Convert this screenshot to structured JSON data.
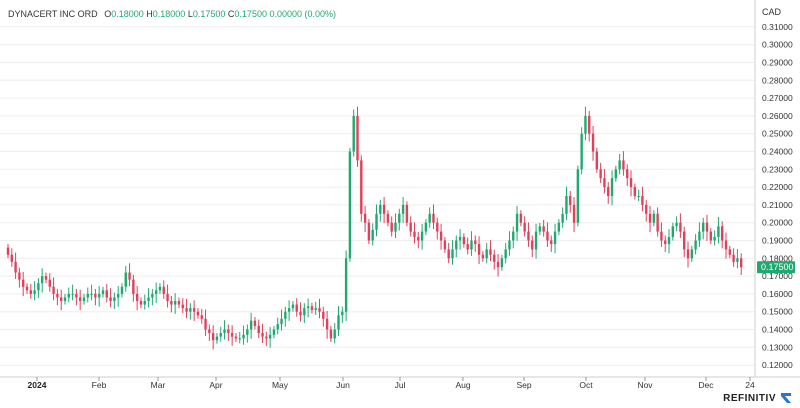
{
  "header": {
    "instrument": "DYNACERT INC ORD",
    "open_label": "O",
    "open": "0.18000",
    "high_label": "H",
    "high": "0.18000",
    "low_label": "L",
    "low": "0.17500",
    "close_label": "C",
    "close": "0.17500",
    "change": "0.00000 (0.00%)"
  },
  "brand": {
    "name": "REFINITIV"
  },
  "colors": {
    "up": "#1fa971",
    "down": "#e0405c",
    "last_price_badge": "#1fa971",
    "grid": "#eeeeee"
  },
  "chart_data": {
    "type": "candlestick",
    "currency": "CAD",
    "ylim": [
      0.115,
      0.315
    ],
    "y_ticks": [
      "0.12000",
      "0.13000",
      "0.14000",
      "0.15000",
      "0.16000",
      "0.17000",
      "0.18000",
      "0.19000",
      "0.20000",
      "0.21000",
      "0.22000",
      "0.23000",
      "0.24000",
      "0.25000",
      "0.26000",
      "0.27000",
      "0.28000",
      "0.29000",
      "0.30000",
      "0.31000"
    ],
    "x_ticks": [
      "2024",
      "Feb",
      "Mar",
      "Apr",
      "May",
      "Jun",
      "Jul",
      "Aug",
      "Sep",
      "Oct",
      "Nov",
      "Dec",
      "24"
    ],
    "last_price": "0.17500",
    "grid": true,
    "close_series": [
      0.182,
      0.178,
      0.172,
      0.168,
      0.164,
      0.162,
      0.16,
      0.162,
      0.166,
      0.17,
      0.168,
      0.164,
      0.16,
      0.158,
      0.156,
      0.158,
      0.16,
      0.16,
      0.158,
      0.156,
      0.158,
      0.16,
      0.16,
      0.158,
      0.16,
      0.162,
      0.158,
      0.156,
      0.158,
      0.16,
      0.164,
      0.172,
      0.168,
      0.16,
      0.156,
      0.154,
      0.156,
      0.158,
      0.16,
      0.162,
      0.164,
      0.16,
      0.156,
      0.154,
      0.156,
      0.154,
      0.152,
      0.15,
      0.152,
      0.15,
      0.148,
      0.146,
      0.14,
      0.138,
      0.134,
      0.136,
      0.138,
      0.14,
      0.138,
      0.136,
      0.135,
      0.135,
      0.137,
      0.14,
      0.145,
      0.142,
      0.138,
      0.136,
      0.135,
      0.137,
      0.14,
      0.143,
      0.146,
      0.15,
      0.152,
      0.154,
      0.15,
      0.148,
      0.152,
      0.153,
      0.151,
      0.152,
      0.15,
      0.146,
      0.14,
      0.135,
      0.14,
      0.148,
      0.15,
      0.18,
      0.24,
      0.26,
      0.235,
      0.205,
      0.2,
      0.19,
      0.196,
      0.205,
      0.21,
      0.205,
      0.2,
      0.195,
      0.2,
      0.205,
      0.21,
      0.2,
      0.195,
      0.192,
      0.19,
      0.195,
      0.2,
      0.205,
      0.2,
      0.195,
      0.19,
      0.185,
      0.18,
      0.185,
      0.19,
      0.192,
      0.188,
      0.185,
      0.19,
      0.188,
      0.182,
      0.18,
      0.185,
      0.182,
      0.178,
      0.175,
      0.18,
      0.185,
      0.19,
      0.195,
      0.205,
      0.2,
      0.195,
      0.19,
      0.185,
      0.195,
      0.198,
      0.195,
      0.19,
      0.188,
      0.195,
      0.2,
      0.205,
      0.215,
      0.21,
      0.2,
      0.23,
      0.25,
      0.26,
      0.25,
      0.24,
      0.23,
      0.225,
      0.22,
      0.215,
      0.225,
      0.23,
      0.235,
      0.23,
      0.225,
      0.22,
      0.215,
      0.215,
      0.21,
      0.205,
      0.2,
      0.205,
      0.195,
      0.19,
      0.188,
      0.192,
      0.198,
      0.2,
      0.195,
      0.185,
      0.18,
      0.185,
      0.19,
      0.195,
      0.2,
      0.195,
      0.19,
      0.192,
      0.198,
      0.19,
      0.185,
      0.182,
      0.178,
      0.18,
      0.175
    ]
  }
}
